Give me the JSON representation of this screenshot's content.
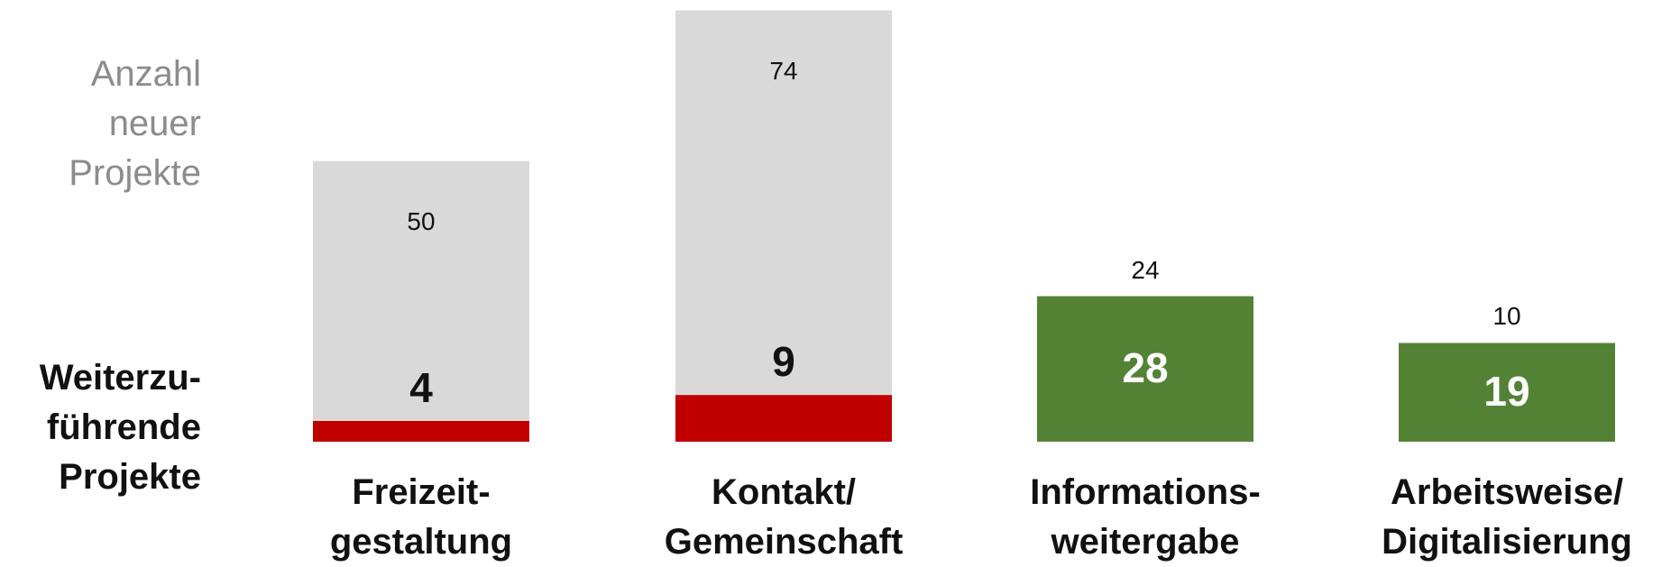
{
  "chart_data": {
    "type": "bar",
    "stacked": true,
    "categories": [
      "Freizeit-\ngestaltung",
      "Kontakt/\nGemeinschaft",
      "Informations-\nweitergabe",
      "Arbeitsweise/\nDigitalisierung"
    ],
    "series": [
      {
        "name": "Weiterzu-\nführende\nProjekte",
        "colors": [
          "#c00000",
          "#c00000",
          "#548235",
          "#548235"
        ],
        "values": [
          4,
          9,
          28,
          19
        ]
      },
      {
        "name": "Anzahl\nneuer\nProjekte",
        "colors": [
          "#d9d9d9",
          "#d9d9d9",
          null,
          null
        ],
        "values": [
          50,
          74,
          24,
          10
        ]
      }
    ],
    "ylim": [
      0,
      85
    ]
  }
}
